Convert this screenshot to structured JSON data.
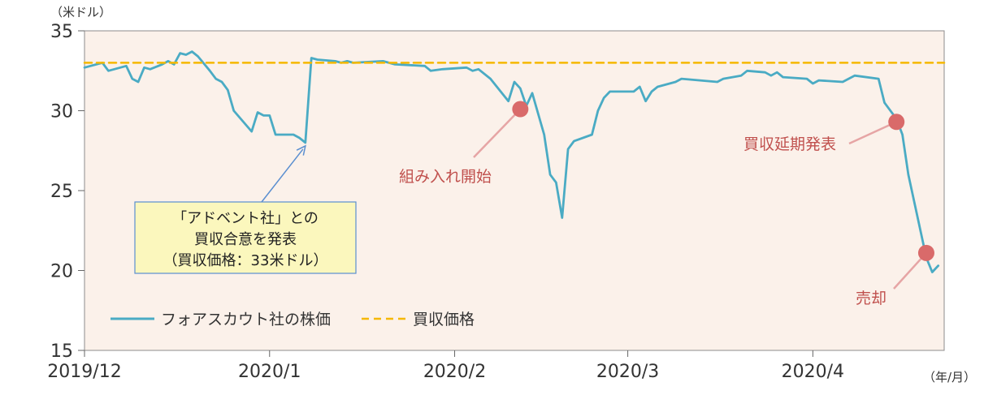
{
  "chart_data": {
    "type": "line",
    "y_unit_label": "（米ドル）",
    "x_unit_label": "（年/月）",
    "ylim": [
      15,
      35
    ],
    "yticks": [
      15,
      20,
      25,
      30,
      35
    ],
    "xlim": [
      "2019-12-01",
      "2020-04-23"
    ],
    "xticks": [
      {
        "date": "2019-12-01",
        "label": "2019/12"
      },
      {
        "date": "2020-01-01",
        "label": "2020/1"
      },
      {
        "date": "2020-02-01",
        "label": "2020/2"
      },
      {
        "date": "2020-03-01",
        "label": "2020/3"
      },
      {
        "date": "2020-04-01",
        "label": "2020/4"
      }
    ],
    "grid": false,
    "legend_position": "bottom-left",
    "colors": {
      "plot_background": "#fbf1ea",
      "price_line": "#4aabc4",
      "offer_line": "#f5b800",
      "marker": "#d96a6a",
      "callout_arrow": "#5b8fd0",
      "annotation_text": "#c0504d",
      "callout_fill": "#fbf7bd",
      "callout_border": "#5b8fd0"
    },
    "series": [
      {
        "name": "フォアスカウト社の株価",
        "style": "solid",
        "points": [
          [
            "2019-12-01",
            32.7
          ],
          [
            "2019-12-04",
            33.0
          ],
          [
            "2019-12-05",
            32.5
          ],
          [
            "2019-12-08",
            32.8
          ],
          [
            "2019-12-09",
            32.0
          ],
          [
            "2019-12-10",
            31.8
          ],
          [
            "2019-12-11",
            32.7
          ],
          [
            "2019-12-12",
            32.6
          ],
          [
            "2019-12-14",
            32.9
          ],
          [
            "2019-12-15",
            33.1
          ],
          [
            "2019-12-16",
            32.9
          ],
          [
            "2019-12-17",
            33.6
          ],
          [
            "2019-12-18",
            33.5
          ],
          [
            "2019-12-19",
            33.7
          ],
          [
            "2019-12-20",
            33.4
          ],
          [
            "2019-12-22",
            32.5
          ],
          [
            "2019-12-23",
            32.0
          ],
          [
            "2019-12-24",
            31.8
          ],
          [
            "2019-12-25",
            31.3
          ],
          [
            "2019-12-26",
            30.0
          ],
          [
            "2019-12-29",
            28.7
          ],
          [
            "2019-12-30",
            29.9
          ],
          [
            "2019-12-31",
            29.7
          ],
          [
            "2020-01-01",
            29.7
          ],
          [
            "2020-01-02",
            28.5
          ],
          [
            "2020-01-05",
            28.5
          ],
          [
            "2020-01-06",
            28.3
          ],
          [
            "2020-01-07",
            28.0
          ],
          [
            "2020-01-08",
            33.3
          ],
          [
            "2020-01-09",
            33.2
          ],
          [
            "2020-01-12",
            33.1
          ],
          [
            "2020-01-13",
            33.0
          ],
          [
            "2020-01-14",
            33.1
          ],
          [
            "2020-01-15",
            33.0
          ],
          [
            "2020-01-20",
            33.1
          ],
          [
            "2020-01-22",
            32.9
          ],
          [
            "2020-01-27",
            32.8
          ],
          [
            "2020-01-28",
            32.5
          ],
          [
            "2020-01-30",
            32.6
          ],
          [
            "2020-02-03",
            32.7
          ],
          [
            "2020-02-04",
            32.5
          ],
          [
            "2020-02-05",
            32.6
          ],
          [
            "2020-02-07",
            32.0
          ],
          [
            "2020-02-10",
            30.6
          ],
          [
            "2020-02-11",
            31.8
          ],
          [
            "2020-02-12",
            31.4
          ],
          [
            "2020-02-13",
            30.3
          ],
          [
            "2020-02-14",
            31.1
          ],
          [
            "2020-02-16",
            28.5
          ],
          [
            "2020-02-17",
            26.0
          ],
          [
            "2020-02-18",
            25.5
          ],
          [
            "2020-02-19",
            23.3
          ],
          [
            "2020-02-20",
            27.6
          ],
          [
            "2020-02-21",
            28.1
          ],
          [
            "2020-02-24",
            28.5
          ],
          [
            "2020-02-25",
            30.0
          ],
          [
            "2020-02-26",
            30.8
          ],
          [
            "2020-02-27",
            31.2
          ],
          [
            "2020-03-02",
            31.2
          ],
          [
            "2020-03-03",
            31.5
          ],
          [
            "2020-03-04",
            30.6
          ],
          [
            "2020-03-05",
            31.2
          ],
          [
            "2020-03-06",
            31.5
          ],
          [
            "2020-03-09",
            31.8
          ],
          [
            "2020-03-10",
            32.0
          ],
          [
            "2020-03-16",
            31.8
          ],
          [
            "2020-03-17",
            32.0
          ],
          [
            "2020-03-20",
            32.2
          ],
          [
            "2020-03-21",
            32.5
          ],
          [
            "2020-03-24",
            32.4
          ],
          [
            "2020-03-25",
            32.2
          ],
          [
            "2020-03-26",
            32.4
          ],
          [
            "2020-03-27",
            32.1
          ],
          [
            "2020-03-31",
            32.0
          ],
          [
            "2020-04-01",
            31.7
          ],
          [
            "2020-04-02",
            31.9
          ],
          [
            "2020-04-06",
            31.8
          ],
          [
            "2020-04-07",
            32.0
          ],
          [
            "2020-04-08",
            32.2
          ],
          [
            "2020-04-12",
            32.0
          ],
          [
            "2020-04-13",
            30.5
          ],
          [
            "2020-04-15",
            29.5
          ],
          [
            "2020-04-16",
            28.5
          ],
          [
            "2020-04-17",
            26.0
          ],
          [
            "2020-04-20",
            20.8
          ],
          [
            "2020-04-21",
            19.9
          ],
          [
            "2020-04-22",
            20.3
          ]
        ]
      },
      {
        "name": "買収価格",
        "style": "dashed",
        "points": [
          [
            "2019-12-01",
            33.0
          ],
          [
            "2020-04-23",
            33.0
          ]
        ]
      }
    ],
    "markers": [
      {
        "date": "2020-02-12",
        "value": 30.1
      },
      {
        "date": "2020-04-15",
        "value": 29.3
      },
      {
        "date": "2020-04-20",
        "value": 21.1
      }
    ],
    "annotations": [
      {
        "text": "組み入れ開始",
        "date": "2020-02-12",
        "value": 30.1
      },
      {
        "text": "買収延期発表",
        "date": "2020-04-15",
        "value": 29.3
      },
      {
        "text": "売却",
        "date": "2020-04-20",
        "value": 21.1
      }
    ],
    "callout": {
      "lines": [
        "「アドベント社」との",
        "買収合意を発表",
        "（買収価格：33米ドル）"
      ],
      "date": "2020-01-07",
      "value": 28.0
    }
  }
}
